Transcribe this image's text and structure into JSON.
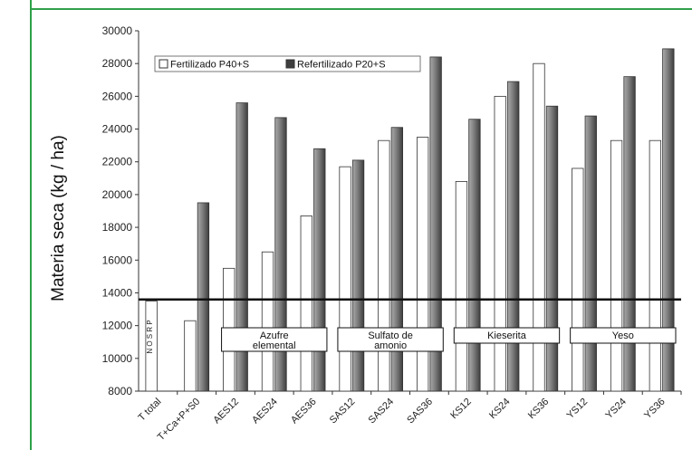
{
  "colors": {
    "frame": "#2fa04a",
    "bar_fertilizado": "#ffffff",
    "bar_refertilizado": "#7d7d7d",
    "threshold_line": "#111111"
  },
  "chart_data": {
    "type": "bar",
    "title": "",
    "ylabel": "Materia seca (kg / ha)",
    "xlabel": "",
    "ylim": [
      8000,
      30000
    ],
    "ytick_step": 2000,
    "yticks": [
      "8000",
      "10000",
      "12000",
      "14000",
      "16000",
      "18000",
      "20000",
      "22000",
      "24000",
      "26000",
      "28000",
      "30000"
    ],
    "categories": [
      "T total",
      "T+Ca+P+S0",
      "AES12",
      "AES24",
      "AES36",
      "SAS12",
      "SAS24",
      "SAS36",
      "KS12",
      "KS24",
      "KS36",
      "YS12",
      "YS24",
      "YS36"
    ],
    "series": [
      {
        "name": "Fertilizado P40+S",
        "values": [
          13500,
          12300,
          15500,
          16500,
          18700,
          21700,
          23300,
          23500,
          20800,
          26000,
          28000,
          21600,
          23300,
          23300
        ]
      },
      {
        "name": "Refertilizado P20+S",
        "values": [
          null,
          19500,
          25600,
          24700,
          22800,
          22100,
          24100,
          28400,
          24600,
          26900,
          25400,
          24800,
          27200,
          28900
        ]
      }
    ],
    "reference_line": {
      "value": 13600
    },
    "bar_annotation": {
      "category": "T total",
      "text": "N O S R P"
    },
    "group_labels": [
      {
        "text": "Azufre elemental",
        "categories": [
          "AES12",
          "AES24",
          "AES36"
        ]
      },
      {
        "text": "Sulfato de amonio",
        "categories": [
          "SAS12",
          "SAS24",
          "SAS36"
        ]
      },
      {
        "text": "Kieserita",
        "categories": [
          "KS12",
          "KS24",
          "KS36"
        ]
      },
      {
        "text": "Yeso",
        "categories": [
          "YS12",
          "YS24",
          "YS36"
        ]
      }
    ],
    "legend_position": "top-left",
    "grid": false
  }
}
